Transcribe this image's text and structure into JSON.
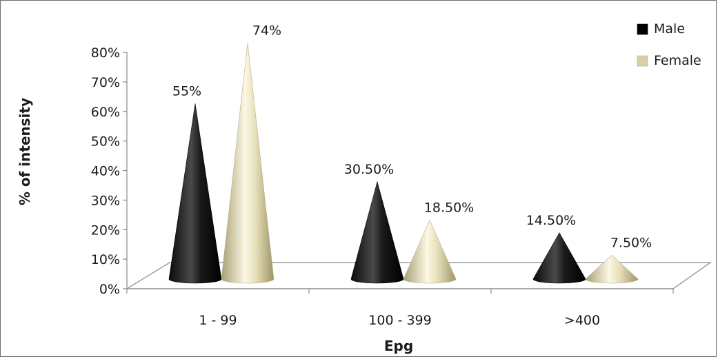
{
  "chart_data": {
    "type": "bar",
    "subtype": "3d-cone",
    "categories": [
      "1 - 99",
      "100 - 399",
      ">400"
    ],
    "series": [
      {
        "name": "Male",
        "values": [
          55,
          30.5,
          14.5
        ],
        "labels": [
          "55%",
          "30.50%",
          "14.50%"
        ],
        "color": "#000000"
      },
      {
        "name": "Female",
        "values": [
          74,
          18.5,
          7.5
        ],
        "labels": [
          "74%",
          "18.50%",
          "7.50%"
        ],
        "color": "#d6cfa8"
      }
    ],
    "title": "",
    "xlabel": "Epg",
    "ylabel": "% of intensity",
    "ylim": [
      0,
      80
    ],
    "yticks": [
      "0%",
      "10%",
      "20%",
      "30%",
      "40%",
      "50%",
      "60%",
      "70%",
      "80%"
    ],
    "grid": false,
    "legend": "top-right"
  }
}
